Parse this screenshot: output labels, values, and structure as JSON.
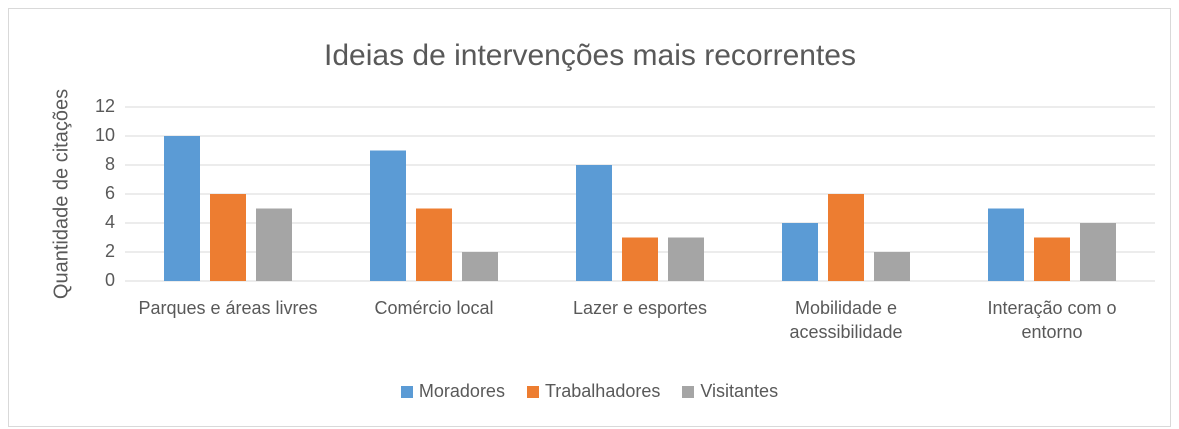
{
  "chart_data": {
    "type": "bar",
    "title": "Ideias de intervenções mais recorrentes",
    "y_label": "Quantidade de citações",
    "categories": [
      "Parques e áreas livres",
      "Comércio local",
      "Lazer e esportes",
      "Mobilidade e acessibilidade",
      "Interação com o entorno"
    ],
    "series": [
      {
        "name": "Moradores",
        "color": "#5b9bd5",
        "values": [
          10,
          9,
          8,
          4,
          5
        ]
      },
      {
        "name": "Trabalhadores",
        "color": "#ed7d31",
        "values": [
          6,
          5,
          3,
          6,
          3
        ]
      },
      {
        "name": "Visitantes",
        "color": "#a5a5a5",
        "values": [
          5,
          2,
          3,
          2,
          4
        ]
      }
    ],
    "ylim": [
      0,
      12
    ],
    "yticks": [
      0,
      2,
      4,
      6,
      8,
      10,
      12
    ],
    "grid": true,
    "legend": "bottom"
  }
}
